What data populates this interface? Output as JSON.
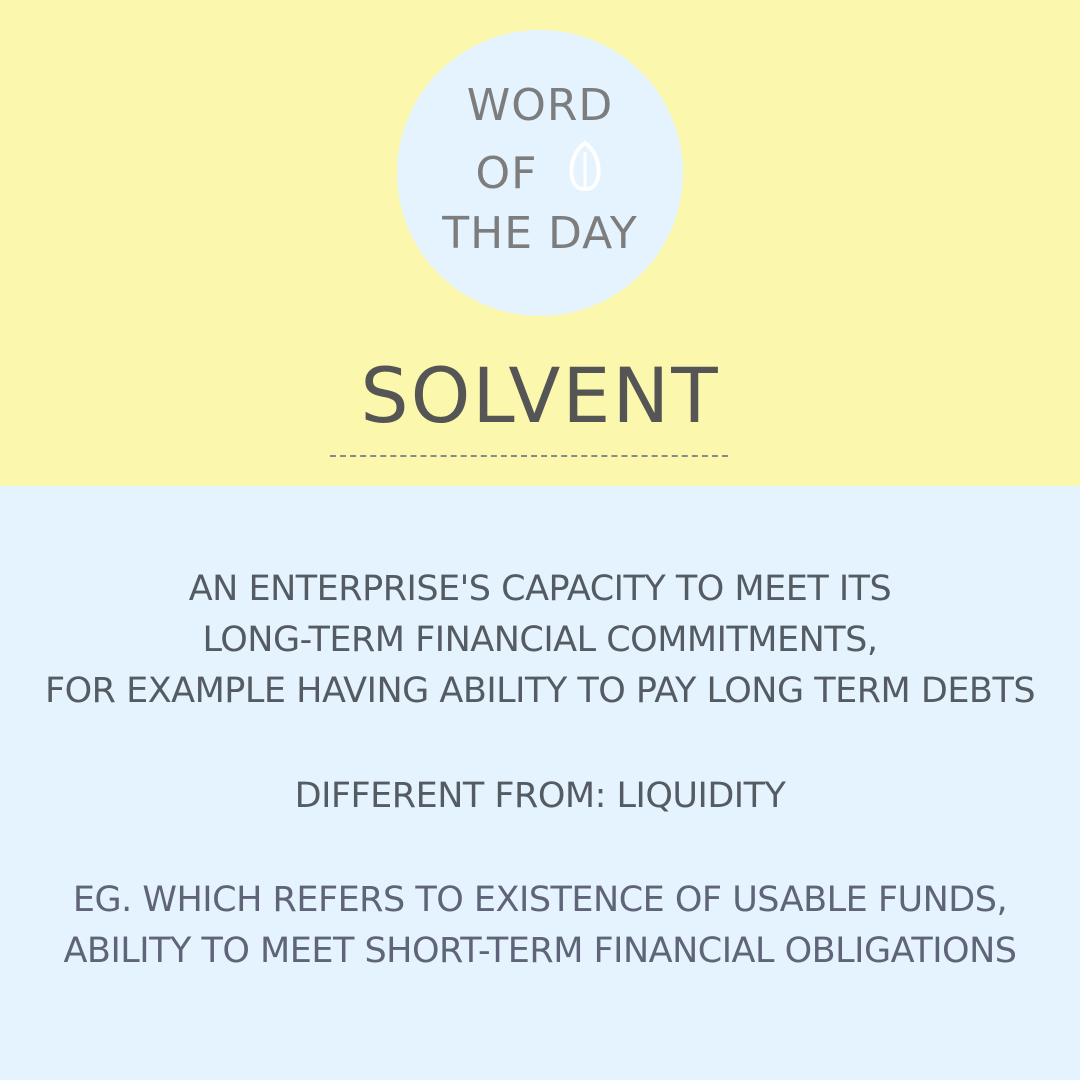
{
  "badge": {
    "line1": "WORD",
    "line2": "OF",
    "line3": "THE DAY",
    "icon": "leaf-icon"
  },
  "headword": "SOLVENT",
  "definition": {
    "lines": [
      "AN ENTERPRISE'S CAPACITY TO MEET ITS",
      "LONG-TERM FINANCIAL COMMITMENTS,",
      "FOR EXAMPLE HAVING ABILITY TO PAY LONG TERM DEBTS"
    ]
  },
  "contrast": "DIFFERENT FROM: LIQUIDITY",
  "example": {
    "lines": [
      "EG. WHICH REFERS TO EXISTENCE OF USABLE FUNDS,",
      "ABILITY TO MEET SHORT-TERM FINANCIAL OBLIGATIONS"
    ]
  },
  "colors": {
    "top_background": "#fbf8ad",
    "bottom_background": "#e4f3fd",
    "circle": "#e4f3fd",
    "badge_text": "#7d7d7d",
    "headword_text": "#555555",
    "body_text": "#555b63"
  }
}
